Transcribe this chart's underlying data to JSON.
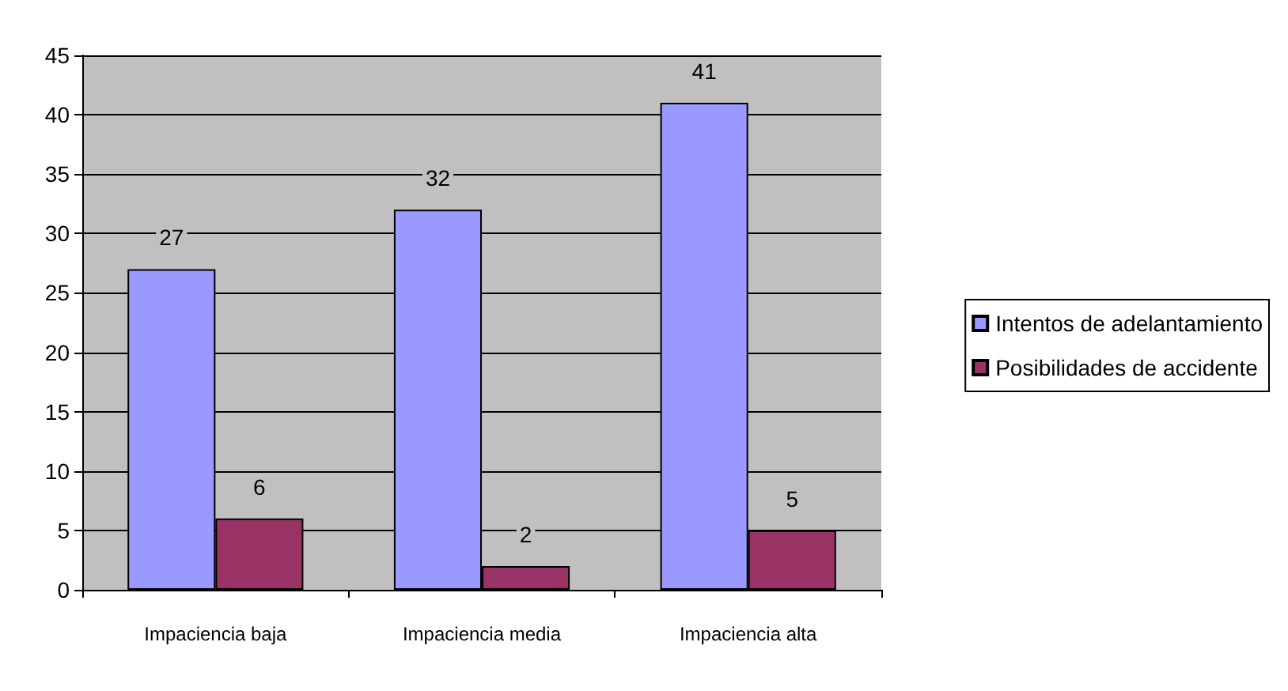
{
  "chart_data": {
    "type": "bar",
    "categories": [
      "Impaciencia baja",
      "Impaciencia media",
      "Impaciencia alta"
    ],
    "series": [
      {
        "name": "Intentos de adelantamiento",
        "color": "#9999ff",
        "values": [
          27,
          32,
          41
        ]
      },
      {
        "name": "Posibilidades de accidente",
        "color": "#993366",
        "values": [
          6,
          2,
          5
        ]
      }
    ],
    "ylim": [
      0,
      45
    ],
    "yticks": [
      0,
      5,
      10,
      15,
      20,
      25,
      30,
      35,
      40,
      45
    ],
    "grid": "y",
    "legend": "right",
    "data_labels": true
  }
}
